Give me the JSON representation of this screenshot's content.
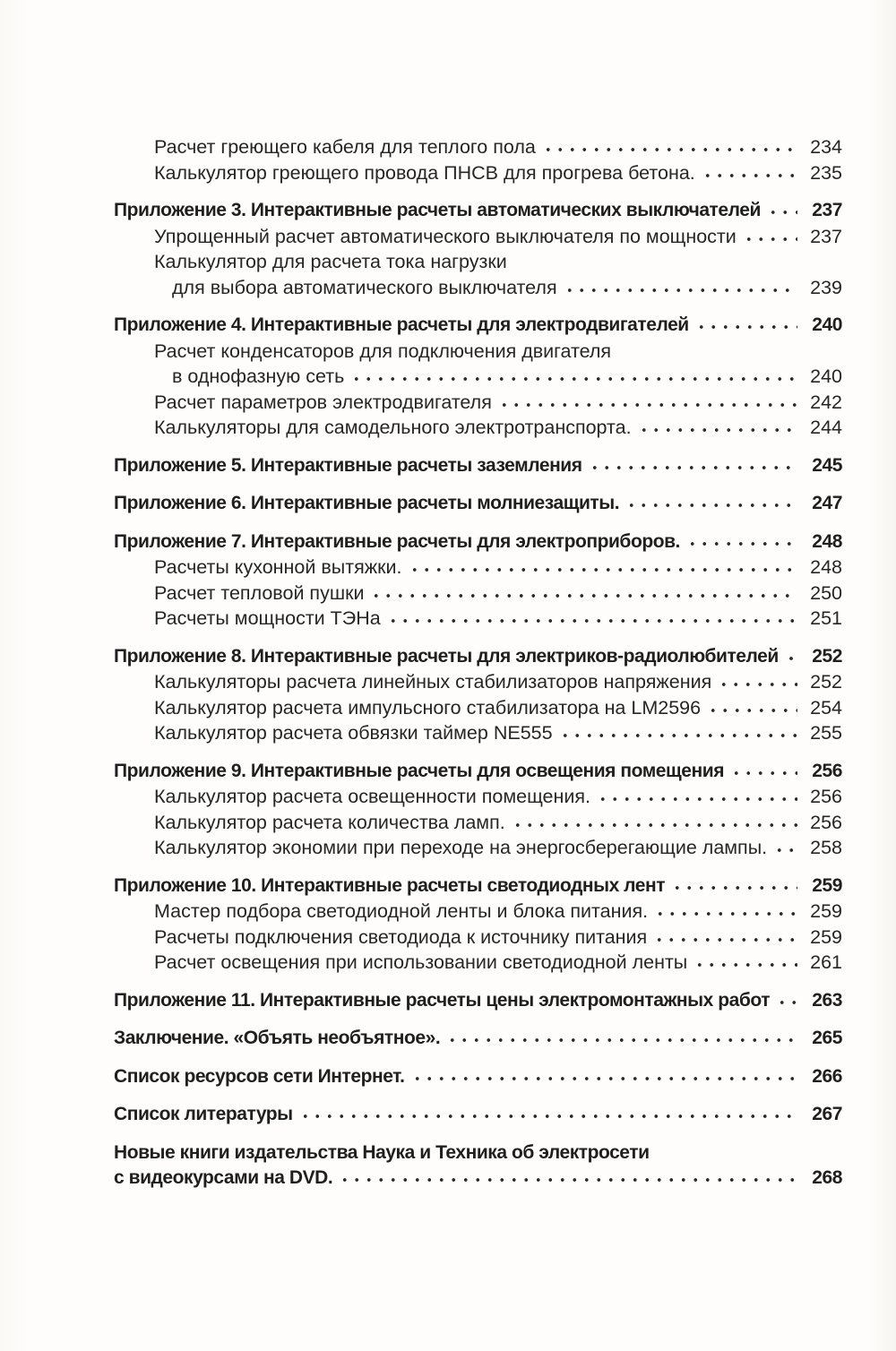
{
  "page": {
    "background": "#fdfcfa",
    "text_color": "#262626"
  },
  "toc": {
    "lines": [
      {
        "style": "sub",
        "text": "Расчет греющего кабеля для теплого пола",
        "page": "234"
      },
      {
        "style": "sub",
        "text": "Калькулятор греющего провода ПНСВ для прогрева бетона.",
        "page": "235"
      },
      {
        "style": "header",
        "text": "Приложение 3. Интерактивные расчеты автоматических выключателей",
        "page": "237"
      },
      {
        "style": "sub",
        "text": "Упрощенный расчет автоматического выключателя по мощности",
        "page": "237"
      },
      {
        "style": "sub",
        "text": "Калькулятор для расчета тока нагрузки",
        "page": null
      },
      {
        "style": "sub2",
        "text": "для выбора автоматического выключателя",
        "page": "239"
      },
      {
        "style": "header",
        "text": "Приложение 4. Интерактивные расчеты для электродвигателей",
        "page": "240"
      },
      {
        "style": "sub",
        "text": "Расчет конденсаторов для подключения двигателя",
        "page": null
      },
      {
        "style": "sub2",
        "text": "в однофазную сеть",
        "page": "240"
      },
      {
        "style": "sub",
        "text": "Расчет параметров электродвигателя",
        "page": "242"
      },
      {
        "style": "sub",
        "text": "Калькуляторы для самодельного электротранспорта.",
        "page": "244"
      },
      {
        "style": "header",
        "text": "Приложение 5. Интерактивные расчеты заземления",
        "page": "245"
      },
      {
        "style": "header",
        "text": "Приложение 6. Интерактивные расчеты молниезащиты.",
        "page": "247"
      },
      {
        "style": "header",
        "text": "Приложение 7. Интерактивные расчеты для электроприборов.",
        "page": "248"
      },
      {
        "style": "sub",
        "text": "Расчеты кухонной вытяжки.",
        "page": "248"
      },
      {
        "style": "sub",
        "text": "Расчет тепловой пушки",
        "page": "250"
      },
      {
        "style": "sub",
        "text": "Расчеты мощности ТЭНа",
        "page": "251"
      },
      {
        "style": "header",
        "text": "Приложение 8. Интерактивные расчеты для электриков-радиолюбителей",
        "page": "252"
      },
      {
        "style": "sub",
        "text": "Калькуляторы расчета линейных стабилизаторов напряжения",
        "page": "252"
      },
      {
        "style": "sub",
        "text": "Калькулятор расчета импульсного стабилизатора на LM2596",
        "page": "254"
      },
      {
        "style": "sub",
        "text": "Калькулятор расчета обвязки таймер NE555",
        "page": "255"
      },
      {
        "style": "header",
        "text": "Приложение 9. Интерактивные расчеты для освещения помещения",
        "page": "256"
      },
      {
        "style": "sub",
        "text": "Калькулятор расчета освещенности помещения.",
        "page": "256"
      },
      {
        "style": "sub",
        "text": "Калькулятор расчета количества ламп.",
        "page": "256"
      },
      {
        "style": "sub",
        "text": "Калькулятор экономии при переходе на энергосберегающие лампы.",
        "page": "258"
      },
      {
        "style": "header",
        "text": "Приложение 10. Интерактивные расчеты светодиодных лент",
        "page": "259"
      },
      {
        "style": "sub",
        "text": "Мастер подбора светодиодной ленты и блока питания.",
        "page": "259"
      },
      {
        "style": "sub",
        "text": "Расчеты подключения светодиода к источнику питания",
        "page": "259"
      },
      {
        "style": "sub",
        "text": "Расчет освещения при использовании светодиодной ленты",
        "page": "261"
      },
      {
        "style": "header",
        "text": "Приложение 11. Интерактивные расчеты цены электромонтажных работ",
        "page": "263"
      },
      {
        "style": "header",
        "text": "Заключение. «Объять необъятное».",
        "page": "265"
      },
      {
        "style": "header",
        "text": "Список ресурсов сети Интернет.",
        "page": "266"
      },
      {
        "style": "header",
        "text": "Список литературы",
        "page": "267"
      },
      {
        "style": "header",
        "text": "Новые книги издательства Наука и Техника об электросети",
        "page": null
      },
      {
        "style": "header2",
        "text": "с видеокурсами на DVD.",
        "page": "268"
      }
    ]
  }
}
